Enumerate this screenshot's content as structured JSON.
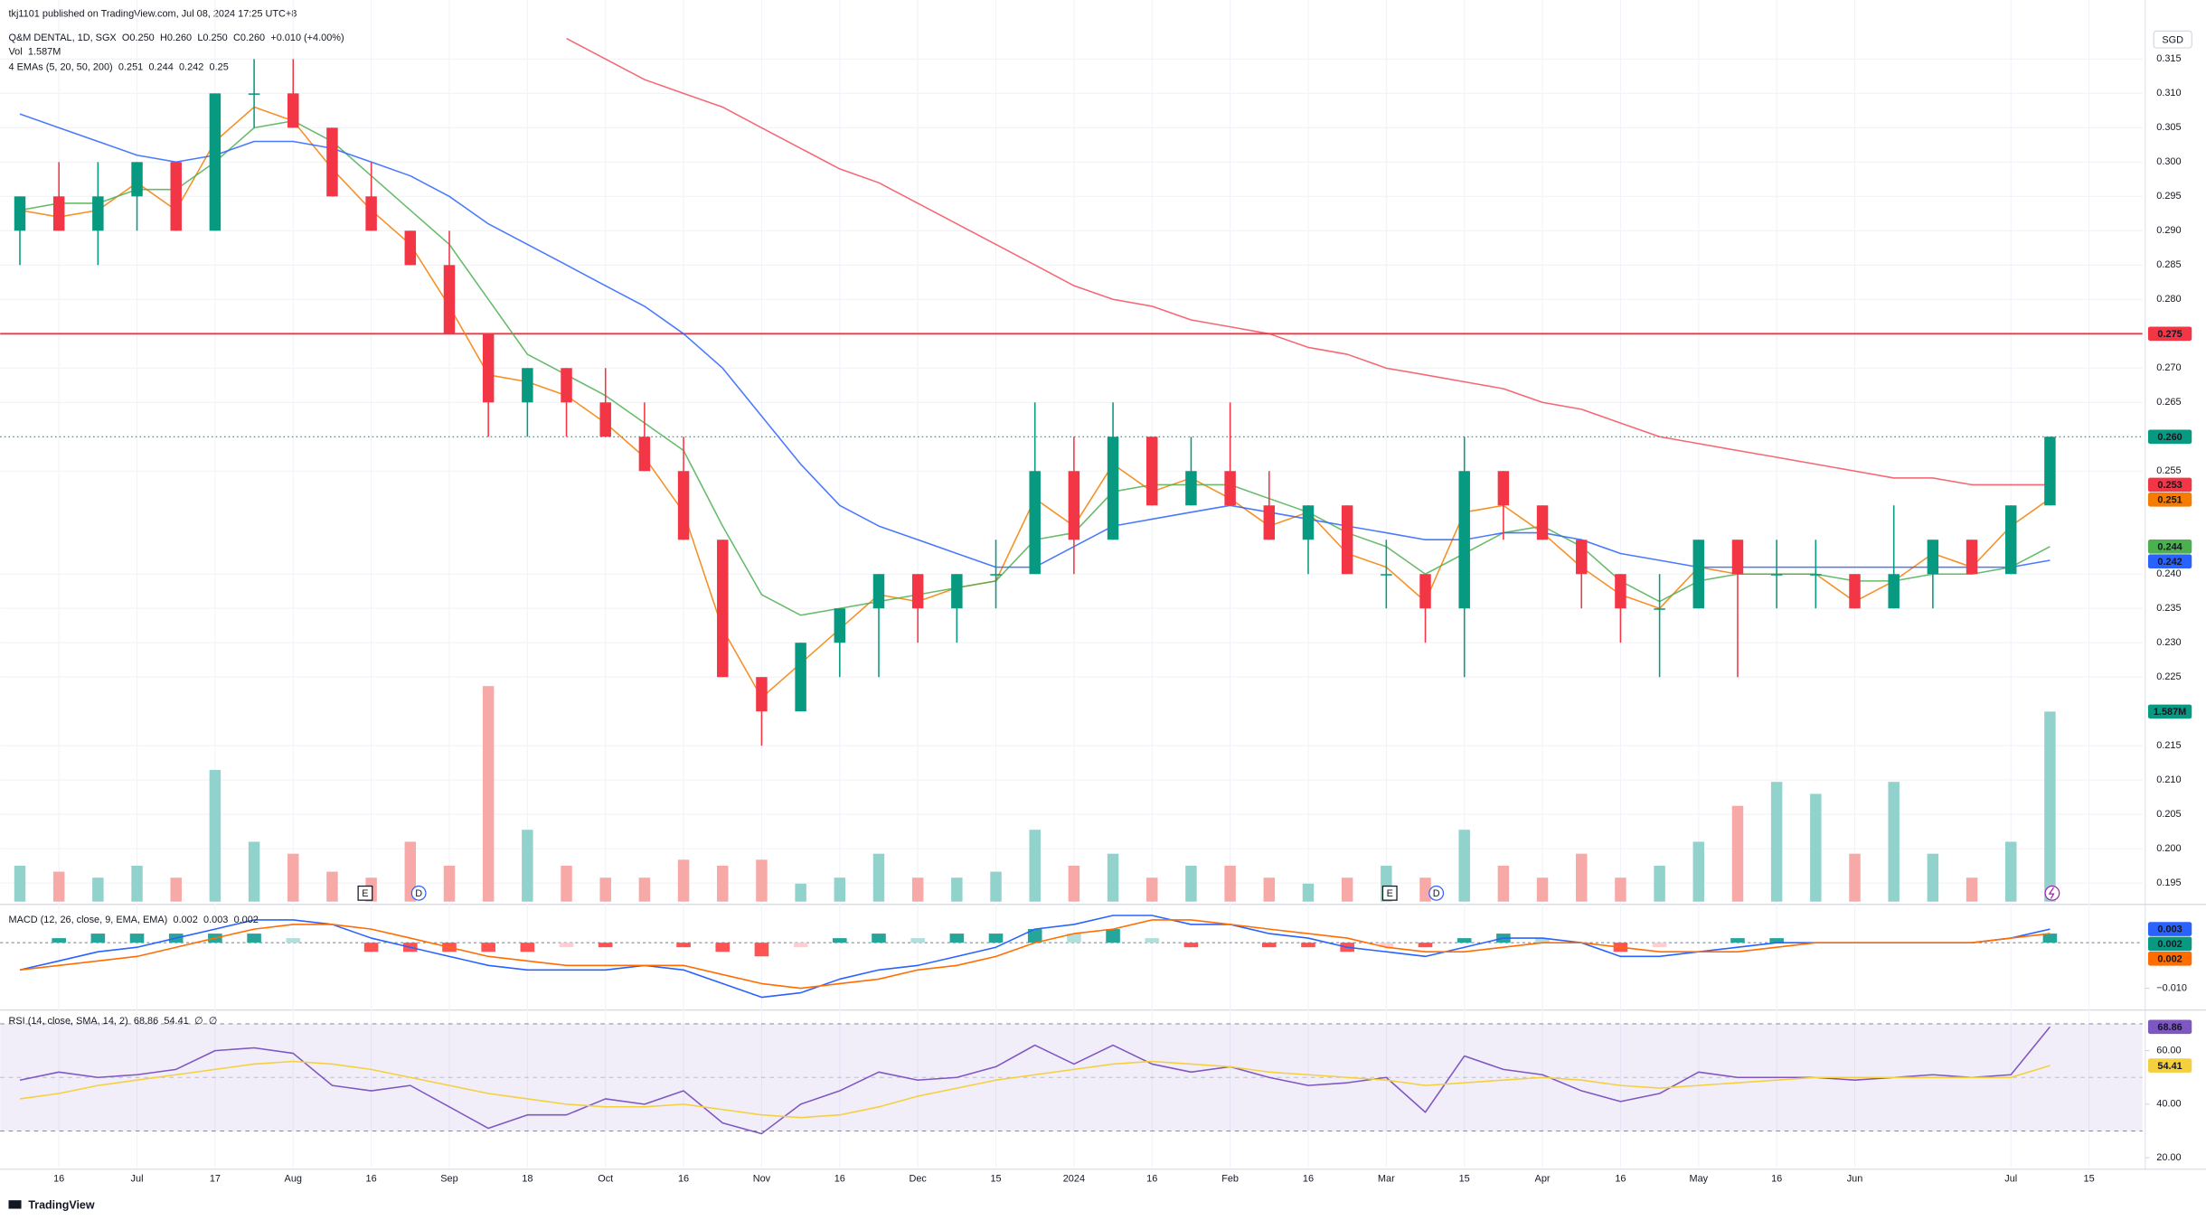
{
  "publisher": "tkj1101 published on TradingView.com, Jul 08, 2024 17:25 UTC+8",
  "footer": "TradingView",
  "currency": "SGD",
  "events": [
    "E",
    "D",
    "E",
    "D"
  ],
  "chart_data": [
    {
      "type": "candlestick",
      "title": "Q&M DENTAL, 1D, SGX",
      "ohlc_legend": [
        "O0.250",
        "H0.260",
        "L0.250",
        "C0.260",
        "+0.010 (+4.00%)"
      ],
      "volume_legend": [
        "Vol",
        "1.587M"
      ],
      "ema_legend": [
        "4 EMAs (5, 20, 50, 200)",
        "0.251",
        "0.244",
        "0.242",
        "0.25"
      ],
      "categories": [
        null,
        "16",
        null,
        "Jul",
        null,
        "17",
        null,
        "Aug",
        null,
        "16",
        null,
        "Sep",
        null,
        "18",
        null,
        "Oct",
        null,
        "16",
        null,
        "Nov",
        null,
        "16",
        null,
        "Dec",
        null,
        "15",
        null,
        "2024",
        null,
        "16",
        null,
        "Feb",
        null,
        "16",
        null,
        "Mar",
        null,
        "15",
        null,
        "Apr",
        null,
        "16",
        null,
        "May",
        null,
        "16",
        null,
        "Jun",
        null,
        null,
        null,
        "Jul",
        null,
        "15"
      ],
      "open": [
        0.29,
        0.295,
        0.29,
        0.295,
        0.3,
        0.29,
        0.31,
        0.31,
        0.305,
        0.295,
        0.29,
        0.285,
        0.275,
        0.265,
        0.27,
        0.265,
        0.26,
        0.255,
        0.245,
        0.225,
        0.22,
        0.23,
        0.235,
        0.24,
        0.235,
        0.24,
        0.24,
        0.255,
        0.245,
        0.26,
        0.25,
        0.255,
        0.25,
        0.245,
        0.25,
        0.24,
        0.24,
        0.235,
        0.255,
        0.25,
        0.245,
        0.24,
        0.235,
        0.235,
        0.245,
        0.24,
        0.24,
        0.24,
        0.235,
        0.24,
        0.245,
        0.24,
        0.25,
        null
      ],
      "high": [
        0.295,
        0.3,
        0.3,
        0.3,
        0.3,
        0.31,
        0.315,
        0.315,
        0.305,
        0.3,
        0.29,
        0.29,
        0.275,
        0.27,
        0.27,
        0.27,
        0.265,
        0.26,
        0.245,
        0.225,
        0.23,
        0.235,
        0.24,
        0.24,
        0.24,
        0.245,
        0.265,
        0.26,
        0.265,
        0.26,
        0.26,
        0.265,
        0.255,
        0.25,
        0.25,
        0.245,
        0.24,
        0.26,
        0.255,
        0.25,
        0.245,
        0.24,
        0.24,
        0.245,
        0.245,
        0.245,
        0.245,
        0.24,
        0.25,
        0.245,
        0.245,
        0.25,
        0.26,
        null
      ],
      "low": [
        0.285,
        0.29,
        0.285,
        0.29,
        0.29,
        0.29,
        0.305,
        0.305,
        0.295,
        0.29,
        0.285,
        0.275,
        0.26,
        0.26,
        0.26,
        0.26,
        0.255,
        0.245,
        0.225,
        0.215,
        0.22,
        0.225,
        0.225,
        0.23,
        0.23,
        0.235,
        0.24,
        0.24,
        0.245,
        0.25,
        0.25,
        0.25,
        0.245,
        0.24,
        0.24,
        0.235,
        0.23,
        0.225,
        0.245,
        0.245,
        0.235,
        0.23,
        0.225,
        0.235,
        0.225,
        0.235,
        0.235,
        0.235,
        0.235,
        0.235,
        0.24,
        0.24,
        0.25,
        null
      ],
      "close": [
        0.295,
        0.29,
        0.295,
        0.3,
        0.29,
        0.31,
        0.31,
        0.305,
        0.295,
        0.29,
        0.285,
        0.275,
        0.265,
        0.27,
        0.265,
        0.26,
        0.255,
        0.245,
        0.225,
        0.22,
        0.23,
        0.235,
        0.24,
        0.235,
        0.24,
        0.24,
        0.255,
        0.245,
        0.26,
        0.25,
        0.255,
        0.25,
        0.245,
        0.25,
        0.24,
        0.24,
        0.235,
        0.255,
        0.25,
        0.245,
        0.24,
        0.235,
        0.235,
        0.245,
        0.24,
        0.24,
        0.24,
        0.235,
        0.24,
        0.245,
        0.24,
        0.25,
        0.26,
        null
      ],
      "up_color": "#089981",
      "down_color": "#f23645",
      "emas": [
        {
          "color": "#f57c00",
          "values": [
            0.293,
            0.292,
            0.293,
            0.297,
            0.293,
            0.303,
            0.308,
            0.306,
            0.299,
            0.293,
            0.288,
            0.279,
            0.269,
            0.268,
            0.266,
            0.262,
            0.257,
            0.249,
            0.232,
            0.222,
            0.227,
            0.232,
            0.237,
            0.236,
            0.238,
            0.239,
            0.251,
            0.247,
            0.256,
            0.252,
            0.254,
            0.251,
            0.247,
            0.249,
            0.243,
            0.241,
            0.236,
            0.249,
            0.25,
            0.246,
            0.241,
            0.237,
            0.235,
            0.241,
            0.24,
            0.24,
            0.24,
            0.236,
            0.239,
            0.243,
            0.241,
            0.247,
            0.251,
            null
          ]
        },
        {
          "color": "#4caf50",
          "values": [
            0.293,
            0.294,
            0.294,
            0.296,
            0.296,
            0.3,
            0.305,
            0.306,
            0.303,
            0.298,
            0.293,
            0.288,
            0.28,
            0.272,
            0.269,
            0.266,
            0.262,
            0.258,
            0.247,
            0.237,
            0.234,
            0.235,
            0.236,
            0.237,
            0.238,
            0.239,
            0.245,
            0.246,
            0.252,
            0.253,
            0.253,
            0.253,
            0.251,
            0.249,
            0.246,
            0.244,
            0.24,
            0.243,
            0.246,
            0.247,
            0.244,
            0.239,
            0.236,
            0.239,
            0.24,
            0.24,
            0.24,
            0.239,
            0.239,
            0.24,
            0.24,
            0.241,
            0.244,
            null
          ]
        },
        {
          "color": "#2962ff",
          "values": [
            0.307,
            0.305,
            0.303,
            0.301,
            0.3,
            0.301,
            0.303,
            0.303,
            0.302,
            0.3,
            0.298,
            0.295,
            0.291,
            0.288,
            0.285,
            0.282,
            0.279,
            0.275,
            0.27,
            0.263,
            0.256,
            0.25,
            0.247,
            0.245,
            0.243,
            0.241,
            0.241,
            0.244,
            0.247,
            0.248,
            0.249,
            0.25,
            0.249,
            0.248,
            0.247,
            0.246,
            0.245,
            0.245,
            0.246,
            0.246,
            0.245,
            0.243,
            0.242,
            0.241,
            0.241,
            0.241,
            0.241,
            0.241,
            0.241,
            0.241,
            0.241,
            0.241,
            0.242,
            null
          ]
        },
        {
          "color": "#f23645",
          "values": [
            null,
            null,
            null,
            null,
            null,
            null,
            null,
            null,
            null,
            null,
            null,
            null,
            null,
            null,
            0.318,
            0.315,
            0.312,
            0.31,
            0.308,
            0.305,
            0.302,
            0.299,
            0.297,
            0.294,
            0.291,
            0.288,
            0.285,
            0.282,
            0.28,
            0.279,
            0.277,
            0.276,
            0.275,
            0.273,
            0.272,
            0.27,
            0.269,
            0.268,
            0.267,
            0.265,
            0.264,
            0.262,
            0.26,
            0.259,
            0.258,
            0.257,
            0.256,
            0.255,
            0.254,
            0.254,
            0.253,
            0.253,
            0.253,
            null
          ]
        }
      ],
      "volume": [
        0.3,
        0.25,
        0.2,
        0.3,
        0.2,
        1.1,
        0.5,
        0.4,
        0.25,
        0.2,
        0.5,
        0.3,
        1.8,
        0.6,
        0.3,
        0.2,
        0.2,
        0.35,
        0.3,
        0.35,
        0.15,
        0.2,
        0.4,
        0.2,
        0.2,
        0.25,
        0.6,
        0.3,
        0.4,
        0.2,
        0.3,
        0.3,
        0.2,
        0.15,
        0.2,
        0.3,
        0.2,
        0.6,
        0.3,
        0.2,
        0.4,
        0.2,
        0.3,
        0.5,
        0.8,
        1.0,
        0.9,
        0.4,
        1.0,
        0.4,
        0.2,
        0.5,
        1.587,
        null
      ],
      "volume_labels": [
        null,
        null,
        null,
        null,
        null,
        null,
        null,
        null,
        null,
        null,
        null,
        null,
        null,
        null,
        null,
        null,
        null,
        null,
        null,
        null,
        null,
        null,
        null,
        null,
        null,
        null,
        null,
        null,
        null,
        null,
        null,
        null,
        null,
        null,
        null,
        null,
        null,
        null,
        null,
        null,
        null,
        null,
        null,
        null,
        null,
        null,
        null,
        null,
        null,
        null,
        null,
        null,
        "1.587M",
        null
      ],
      "volume_colors": [
        "#92d2cc",
        "#f7a9a7"
      ],
      "ylim": [
        0.1923,
        0.3236
      ],
      "yticks": [
        {
          "value": 0.195,
          "label": "0.195"
        },
        {
          "value": 0.2,
          "label": "0.200"
        },
        {
          "value": 0.205,
          "label": "0.205"
        },
        {
          "value": 0.21,
          "label": "0.210"
        },
        {
          "value": 0.215,
          "label": "0.215"
        },
        {
          "value": 0.225,
          "label": "0.225"
        },
        {
          "value": 0.23,
          "label": "0.230"
        },
        {
          "value": 0.235,
          "label": "0.235"
        },
        {
          "value": 0.24,
          "label": "0.240"
        },
        {
          "value": 0.255,
          "label": "0.255"
        },
        {
          "value": 0.265,
          "label": "0.265"
        },
        {
          "value": 0.27,
          "label": "0.270"
        },
        {
          "value": 0.28,
          "label": "0.280"
        },
        {
          "value": 0.285,
          "label": "0.285"
        },
        {
          "value": 0.29,
          "label": "0.290"
        },
        {
          "value": 0.295,
          "label": "0.295"
        },
        {
          "value": 0.3,
          "label": "0.300"
        },
        {
          "value": 0.305,
          "label": "0.305"
        },
        {
          "value": 0.31,
          "label": "0.310"
        },
        {
          "value": 0.315,
          "label": "0.315"
        }
      ],
      "price_lines": [
        {
          "value": 0.275,
          "label": "0.275",
          "color": "#f23645",
          "line": "solid"
        },
        {
          "value": 0.26,
          "label": "0.260",
          "color": "#089981",
          "line": "dotted"
        }
      ],
      "badges": [
        {
          "value": 0.253,
          "label": "0.253",
          "color": "#f23645"
        },
        {
          "value": 0.251,
          "label": "0.251",
          "color": "#f57c00"
        },
        {
          "value": 0.244,
          "label": "0.244",
          "color": "#4caf50"
        },
        {
          "value": 0.242,
          "label": "0.242",
          "color": "#2962ff"
        }
      ],
      "grid": true
    },
    {
      "type": "macd",
      "title": "MACD (12, 26, close, 9, EMA, EMA)",
      "legend_values": [
        "0.002",
        "0.003",
        "0.002"
      ],
      "series": [
        {
          "color": "#2962ff",
          "values": [
            -0.006,
            -0.004,
            -0.002,
            -0.001,
            0.001,
            0.003,
            0.005,
            0.005,
            0.004,
            0.001,
            -0.001,
            -0.003,
            -0.005,
            -0.006,
            -0.006,
            -0.006,
            -0.005,
            -0.006,
            -0.009,
            -0.012,
            -0.011,
            -0.008,
            -0.006,
            -0.005,
            -0.003,
            -0.001,
            0.003,
            0.004,
            0.006,
            0.006,
            0.004,
            0.004,
            0.002,
            0.001,
            -0.001,
            -0.002,
            -0.003,
            -0.001,
            0.001,
            0.001,
            0.0,
            -0.003,
            -0.003,
            -0.002,
            -0.001,
            0.0,
            0.0,
            0.0,
            0.0,
            0.0,
            0.0,
            0.001,
            0.003
          ]
        },
        {
          "color": "#ff6d00",
          "values": [
            -0.006,
            -0.005,
            -0.004,
            -0.003,
            -0.001,
            0.001,
            0.003,
            0.004,
            0.004,
            0.003,
            0.001,
            -0.001,
            -0.003,
            -0.004,
            -0.005,
            -0.005,
            -0.005,
            -0.005,
            -0.007,
            -0.009,
            -0.01,
            -0.009,
            -0.008,
            -0.006,
            -0.005,
            -0.003,
            0.0,
            0.002,
            0.003,
            0.005,
            0.005,
            0.004,
            0.003,
            0.002,
            0.001,
            -0.001,
            -0.002,
            -0.002,
            -0.001,
            0.0,
            0.0,
            -0.001,
            -0.002,
            -0.002,
            -0.002,
            -0.001,
            0.0,
            0.0,
            0.0,
            0.0,
            0.0,
            0.001,
            0.002
          ]
        }
      ],
      "histogram": [
        0.0,
        0.001,
        0.002,
        0.002,
        0.002,
        0.002,
        0.002,
        0.001,
        0.0,
        -0.002,
        -0.002,
        -0.002,
        -0.002,
        -0.002,
        -0.001,
        -0.001,
        0.0,
        -0.001,
        -0.002,
        -0.003,
        -0.001,
        0.001,
        0.002,
        0.001,
        0.002,
        0.002,
        0.003,
        0.002,
        0.003,
        0.001,
        -0.001,
        0.0,
        -0.001,
        -0.001,
        -0.002,
        -0.001,
        -0.001,
        0.001,
        0.002,
        0.001,
        0.0,
        -0.002,
        -0.001,
        0.0,
        0.001,
        0.001,
        0.0,
        0.0,
        0.0,
        0.0,
        0.0,
        0.0,
        0.002
      ],
      "histogram_colors": [
        "#26a69a",
        "#b2dfdb",
        "#ff5252",
        "#ffcdd2"
      ],
      "ylim": [
        -0.0145,
        0.0081
      ],
      "yticks": [
        {
          "value": -0.01,
          "label": "−0.010"
        }
      ],
      "badges": [
        {
          "value": 0.003,
          "label": "0.003",
          "color": "#2962ff"
        },
        {
          "value": 0.002,
          "label": "0.002",
          "color": "#089981"
        },
        {
          "value": 0.002,
          "label": "0.002",
          "color": "#ff6d00"
        }
      ],
      "zero_line": true
    },
    {
      "type": "rsi",
      "title": "RSI (14, close, SMA, 14, 2)",
      "legend_values": [
        "68.86",
        "54.41",
        "∅",
        "∅"
      ],
      "series": [
        {
          "color": "#7e57c2",
          "values": [
            49,
            52,
            50,
            51,
            53,
            60,
            61,
            59,
            47,
            45,
            47,
            39,
            31,
            36,
            36,
            42,
            40,
            45,
            33,
            29,
            40,
            45,
            52,
            49,
            50,
            54,
            62,
            55,
            62,
            55,
            52,
            54,
            50,
            47,
            48,
            50,
            37,
            58,
            53,
            51,
            45,
            41,
            44,
            52,
            50,
            50,
            50,
            49,
            50,
            51,
            50,
            51,
            68.86
          ]
        },
        {
          "color": "#f4d03f",
          "values": [
            42,
            44,
            47,
            49,
            51,
            53,
            55,
            56,
            55,
            53,
            50,
            47,
            44,
            42,
            40,
            39,
            39,
            40,
            38,
            36,
            35,
            36,
            39,
            43,
            46,
            49,
            51,
            53,
            55,
            56,
            55,
            54,
            52,
            51,
            50,
            49,
            47,
            48,
            49,
            50,
            49,
            47,
            46,
            47,
            48,
            49,
            50,
            50,
            50,
            50,
            50,
            50,
            54.41
          ]
        }
      ],
      "ylim": [
        16.2,
        74.6
      ],
      "yticks": [
        {
          "value": 20,
          "label": "20.00"
        },
        {
          "value": 40,
          "label": "40.00"
        },
        {
          "value": 60,
          "label": "60.00"
        }
      ],
      "bands": [
        70,
        50,
        30
      ],
      "band_color": "#7e57c2",
      "badges": [
        {
          "value": 68.86,
          "label": "68.86",
          "color": "#7e57c2"
        },
        {
          "value": 54.41,
          "label": "54.41",
          "color": "#f4d03f"
        }
      ]
    }
  ]
}
